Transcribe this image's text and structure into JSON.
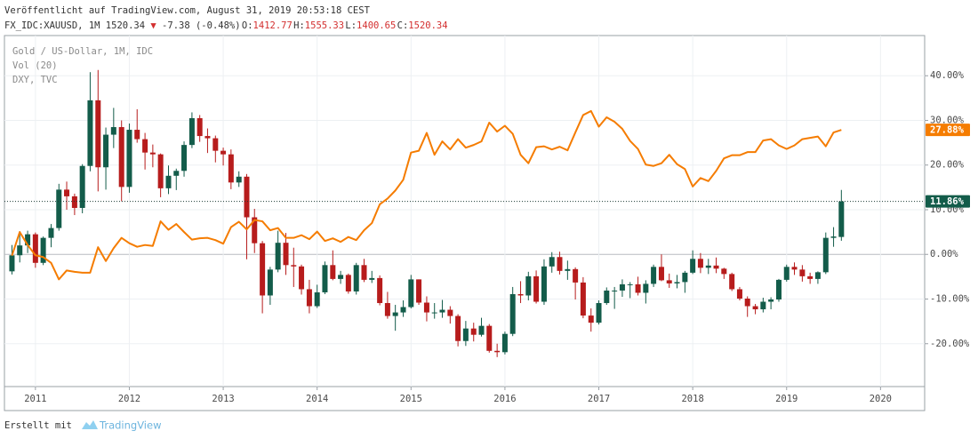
{
  "header": {
    "published": "Veröffentlicht auf TradingView.com, August 31, 2019 20:53:18 CEST",
    "symbol": "FX_IDC:XAUUSD, 1M",
    "last": "1520.34",
    "arrow": "▼",
    "change": "-7.38 (-0.48%)",
    "ohlc": [
      {
        "label": "O:",
        "value": "1412.77"
      },
      {
        "label": "H:",
        "value": "1555.33"
      },
      {
        "label": "L:",
        "value": "1400.65"
      },
      {
        "label": "C:",
        "value": "1520.34"
      }
    ]
  },
  "chart_data": {
    "type": "candlestick",
    "indicator": "Vol (20)",
    "x": [
      2010.75,
      2010.833,
      2010.917,
      2011,
      2011.083,
      2011.167,
      2011.25,
      2011.333,
      2011.417,
      2011.5,
      2011.583,
      2011.667,
      2011.75,
      2011.833,
      2011.917,
      2012,
      2012.083,
      2012.167,
      2012.25,
      2012.333,
      2012.417,
      2012.5,
      2012.583,
      2012.667,
      2012.75,
      2012.833,
      2012.917,
      2013,
      2013.083,
      2013.167,
      2013.25,
      2013.333,
      2013.417,
      2013.5,
      2013.583,
      2013.667,
      2013.75,
      2013.833,
      2013.917,
      2014,
      2014.083,
      2014.167,
      2014.25,
      2014.333,
      2014.417,
      2014.5,
      2014.583,
      2014.667,
      2014.75,
      2014.833,
      2014.917,
      2015,
      2015.083,
      2015.167,
      2015.25,
      2015.333,
      2015.417,
      2015.5,
      2015.583,
      2015.667,
      2015.75,
      2015.833,
      2015.917,
      2016,
      2016.083,
      2016.167,
      2016.25,
      2016.333,
      2016.417,
      2016.5,
      2016.583,
      2016.667,
      2016.75,
      2016.833,
      2016.917,
      2017,
      2017.083,
      2017.167,
      2017.25,
      2017.333,
      2017.417,
      2017.5,
      2017.583,
      2017.667,
      2017.75,
      2017.833,
      2017.917,
      2018,
      2018.083,
      2018.167,
      2018.25,
      2018.333,
      2018.417,
      2018.5,
      2018.583,
      2018.667,
      2018.75,
      2018.833,
      2018.917,
      2019,
      2019.083,
      2019.167,
      2019.25,
      2019.333,
      2019.417,
      2019.5,
      2019.583
    ],
    "series": [
      {
        "name": "Gold / US-Dollar, 1M, IDC",
        "up_color": "#135c4a",
        "down_color": "#b71c1c",
        "open": [
          -3.8,
          -0.2,
          2.0,
          4.5,
          -1.9,
          3.7,
          5.9,
          14.5,
          13.0,
          10.4,
          19.8,
          34.5,
          19.5,
          26.8,
          28.5,
          15.1,
          27.9,
          25.8,
          22.8,
          22.4,
          14.8,
          17.6,
          18.7,
          24.5,
          30.5,
          26.5,
          26.0,
          23.2,
          22.4,
          16.1,
          17.4,
          8.3,
          2.5,
          -9.2,
          -3.4,
          2.6,
          -2.4,
          -2.7,
          -7.8,
          -11.6,
          -8.5,
          -2.4,
          -5.5,
          -4.6,
          -8.3,
          -2.4,
          -5.7,
          -5.3,
          -10.9,
          -13.8,
          -13.0,
          -11.8,
          -5.6,
          -10.8,
          -13.0,
          -13.0,
          -12.4,
          -13.8,
          -19.4,
          -16.6,
          -18.0,
          -16.0,
          -21.6,
          -21.9,
          -17.8,
          -8.9,
          -9.2,
          -4.9,
          -10.6,
          -2.7,
          -0.6,
          -3.7,
          -3.3,
          -6.3,
          -13.7,
          -15.3,
          -10.9,
          -8.1,
          -8.1,
          -6.7,
          -6.7,
          -8.6,
          -6.6,
          -2.8,
          -5.8,
          -6.5,
          -6.2,
          -4.1,
          -1.0,
          -3.0,
          -2.5,
          -3.2,
          -4.4,
          -7.8,
          -9.9,
          -11.6,
          -12.3,
          -10.6,
          -10.1,
          -5.7,
          -2.8,
          -3.4,
          -4.9,
          -5.5,
          -4.0,
          3.7,
          3.9
        ],
        "high": [
          2.1,
          5.2,
          5.3,
          4.9,
          4.0,
          6.8,
          15.8,
          16.3,
          13.6,
          20.2,
          40.8,
          41.3,
          28.4,
          32.8,
          30.0,
          29.3,
          32.5,
          27.2,
          24.6,
          22.6,
          19.9,
          19.2,
          25.3,
          31.8,
          31.2,
          28.2,
          26.6,
          23.9,
          23.5,
          18.6,
          18.0,
          10.2,
          3.0,
          -2.8,
          5.3,
          4.8,
          1.5,
          -2.3,
          -5.7,
          -6.8,
          -1.6,
          0.9,
          -3.7,
          -4.3,
          -1.9,
          -1.0,
          -3.7,
          -4.7,
          -8.4,
          -11.3,
          -10.3,
          -4.6,
          -5.6,
          -9.4,
          -10.9,
          -10.2,
          -11.6,
          -13.4,
          -14.9,
          -15.3,
          -14.2,
          -15.6,
          -20.0,
          -17.3,
          -7.3,
          -6.0,
          -3.9,
          -3.6,
          -1.1,
          0.5,
          0.6,
          -1.4,
          -2.9,
          -5.1,
          -12.1,
          -10.3,
          -7.4,
          -7.3,
          -5.6,
          -6.2,
          -5.0,
          -5.8,
          -2.3,
          0.0,
          -4.3,
          -4.6,
          -3.7,
          0.9,
          0.3,
          -1.0,
          -0.7,
          -3.0,
          -4.1,
          -7.3,
          -9.4,
          -11.1,
          -9.7,
          -9.6,
          -5.5,
          -2.3,
          -1.8,
          -2.4,
          -4.1,
          -3.8,
          4.9,
          6.1,
          14.43
        ],
        "low": [
          -4.5,
          -1.8,
          0.3,
          -3.0,
          -2.4,
          1.6,
          5.3,
          10.0,
          8.8,
          9.2,
          18.6,
          14.1,
          14.5,
          23.8,
          11.9,
          13.8,
          25.0,
          19.0,
          19.5,
          12.8,
          13.5,
          14.4,
          17.4,
          23.8,
          25.2,
          22.7,
          20.6,
          19.9,
          14.6,
          15.1,
          -1.1,
          0.3,
          -13.2,
          -11.3,
          -4.0,
          -4.6,
          -7.3,
          -9.0,
          -13.2,
          -12.0,
          -8.9,
          -5.8,
          -6.6,
          -8.8,
          -9.0,
          -6.2,
          -6.4,
          -11.4,
          -14.4,
          -17.1,
          -14.0,
          -12.1,
          -11.3,
          -15.0,
          -14.4,
          -14.2,
          -15.5,
          -20.6,
          -20.5,
          -19.5,
          -18.4,
          -22.0,
          -23.0,
          -22.4,
          -18.3,
          -10.9,
          -10.3,
          -11.0,
          -11.3,
          -4.1,
          -4.5,
          -5.7,
          -10.1,
          -14.3,
          -17.3,
          -15.7,
          -11.3,
          -12.2,
          -9.5,
          -9.8,
          -9.2,
          -11.0,
          -7.3,
          -6.0,
          -7.5,
          -7.6,
          -8.6,
          -4.4,
          -4.2,
          -4.4,
          -4.2,
          -5.5,
          -8.2,
          -10.3,
          -14.0,
          -13.4,
          -13.0,
          -12.3,
          -10.6,
          -6.1,
          -4.6,
          -6.1,
          -6.6,
          -6.6,
          -4.4,
          1.7,
          3.05
        ],
        "close": [
          -0.2,
          2.0,
          4.5,
          -1.9,
          3.7,
          5.9,
          14.5,
          13.0,
          10.4,
          19.8,
          34.5,
          19.5,
          26.8,
          28.5,
          15.1,
          27.9,
          25.8,
          22.8,
          22.4,
          14.8,
          17.6,
          18.7,
          24.5,
          30.5,
          26.5,
          26.0,
          23.2,
          22.4,
          16.1,
          17.4,
          8.3,
          2.5,
          -9.2,
          -3.4,
          2.6,
          -2.4,
          -2.7,
          -7.8,
          -11.6,
          -8.5,
          -2.4,
          -5.5,
          -4.6,
          -8.3,
          -2.4,
          -5.7,
          -5.3,
          -10.9,
          -13.8,
          -13.0,
          -11.8,
          -5.6,
          -10.8,
          -13.0,
          -13.0,
          -12.4,
          -13.8,
          -19.4,
          -16.6,
          -18.0,
          -16.0,
          -21.6,
          -21.9,
          -17.8,
          -8.9,
          -9.2,
          -4.9,
          -10.6,
          -2.7,
          -0.6,
          -3.7,
          -3.3,
          -6.3,
          -13.7,
          -15.3,
          -10.9,
          -8.1,
          -8.1,
          -6.7,
          -6.7,
          -8.6,
          -6.6,
          -2.8,
          -5.8,
          -6.5,
          -6.2,
          -4.1,
          -1.0,
          -3.0,
          -2.5,
          -3.2,
          -4.4,
          -7.8,
          -9.9,
          -11.6,
          -12.3,
          -10.6,
          -10.1,
          -5.7,
          -2.8,
          -3.4,
          -4.9,
          -5.5,
          -4.0,
          3.7,
          4.0,
          11.86
        ],
        "value_labels": [
          null,
          null,
          null,
          null,
          null,
          null,
          null,
          null,
          null,
          null,
          null,
          null,
          null,
          null,
          null,
          null,
          null,
          null,
          null,
          null,
          null,
          null,
          null,
          null,
          null,
          null,
          null,
          null,
          null,
          null,
          null,
          null,
          null,
          null,
          null,
          null,
          null,
          null,
          null,
          null,
          null,
          null,
          null,
          null,
          null,
          null,
          null,
          null,
          null,
          null,
          null,
          null,
          null,
          null,
          null,
          null,
          null,
          null,
          null,
          null,
          null,
          null,
          null,
          null,
          null,
          null,
          null,
          null,
          null,
          null,
          null,
          null,
          null,
          null,
          null,
          null,
          null,
          null,
          null,
          null,
          null,
          null,
          null,
          null,
          null,
          null,
          null,
          null,
          null,
          null,
          null,
          null,
          null,
          null,
          null,
          null,
          null,
          null,
          null,
          null,
          null,
          null,
          null,
          null,
          null,
          null,
          "11.86%"
        ]
      },
      {
        "name": "DXY, TVC",
        "type": "line",
        "color": "#f57c00",
        "values": [
          -0.3,
          5.0,
          2.1,
          -0.2,
          -0.6,
          -1.9,
          -5.6,
          -3.6,
          -3.9,
          -4.1,
          -4.1,
          1.6,
          -1.5,
          1.4,
          3.7,
          2.5,
          1.7,
          2.1,
          1.9,
          7.4,
          5.5,
          6.8,
          5.0,
          3.3,
          3.6,
          3.7,
          3.2,
          2.4,
          6.1,
          7.3,
          5.6,
          7.7,
          7.4,
          5.4,
          5.9,
          3.7,
          3.7,
          4.3,
          3.4,
          5.1,
          3.0,
          3.6,
          2.8,
          3.9,
          3.2,
          5.4,
          7.0,
          11.2,
          12.5,
          14.3,
          16.7,
          22.8,
          23.2,
          27.2,
          22.3,
          25.3,
          23.5,
          25.8,
          23.9,
          24.5,
          25.3,
          29.5,
          27.5,
          28.8,
          27.0,
          22.3,
          20.4,
          24.0,
          24.2,
          23.5,
          24.1,
          23.3,
          27.3,
          31.2,
          32.1,
          28.6,
          30.7,
          29.7,
          28.1,
          25.4,
          23.6,
          20.1,
          19.8,
          20.4,
          22.3,
          20.2,
          19.1,
          15.2,
          17.1,
          16.4,
          18.7,
          21.5,
          22.2,
          22.2,
          22.9,
          22.9,
          25.5,
          25.8,
          24.4,
          23.6,
          24.4,
          25.8,
          26.1,
          26.4,
          24.2,
          27.3,
          27.88
        ],
        "value_labels": [
          null,
          null,
          null,
          null,
          null,
          null,
          null,
          null,
          null,
          null,
          null,
          null,
          null,
          null,
          null,
          null,
          null,
          null,
          null,
          null,
          null,
          null,
          null,
          null,
          null,
          null,
          null,
          null,
          null,
          null,
          null,
          null,
          null,
          null,
          null,
          null,
          null,
          null,
          null,
          null,
          null,
          null,
          null,
          null,
          null,
          null,
          null,
          null,
          null,
          null,
          null,
          null,
          null,
          null,
          null,
          null,
          null,
          null,
          null,
          null,
          null,
          null,
          null,
          null,
          null,
          null,
          null,
          null,
          null,
          null,
          null,
          null,
          null,
          null,
          null,
          null,
          null,
          null,
          null,
          null,
          null,
          null,
          null,
          null,
          null,
          null,
          null,
          null,
          null,
          null,
          null,
          null,
          null,
          null,
          null,
          null,
          null,
          null,
          null,
          null,
          null,
          null,
          null,
          null,
          null,
          null,
          "27.88%"
        ]
      }
    ],
    "xlim": [
      2010.67,
      2020.47
    ],
    "xticks": [
      2011,
      2012,
      2013,
      2014,
      2015,
      2016,
      2017,
      2018,
      2019,
      2020
    ],
    "ylim": [
      -29.6,
      49
    ],
    "yticks": [
      {
        "value": -20,
        "label": "-20.00%"
      },
      {
        "value": -10,
        "label": "-10.00%"
      },
      {
        "value": 0,
        "label": "0.00%"
      },
      {
        "value": 10,
        "label": "10.00%"
      },
      {
        "value": 20,
        "label": "20.00%"
      },
      {
        "value": 30,
        "label": "30.00%"
      },
      {
        "value": 40,
        "label": "40.00%"
      }
    ],
    "grid": true,
    "legend_position": "top-left"
  },
  "footer": {
    "created_with": "Erstellt mit",
    "brand": "TradingView"
  }
}
